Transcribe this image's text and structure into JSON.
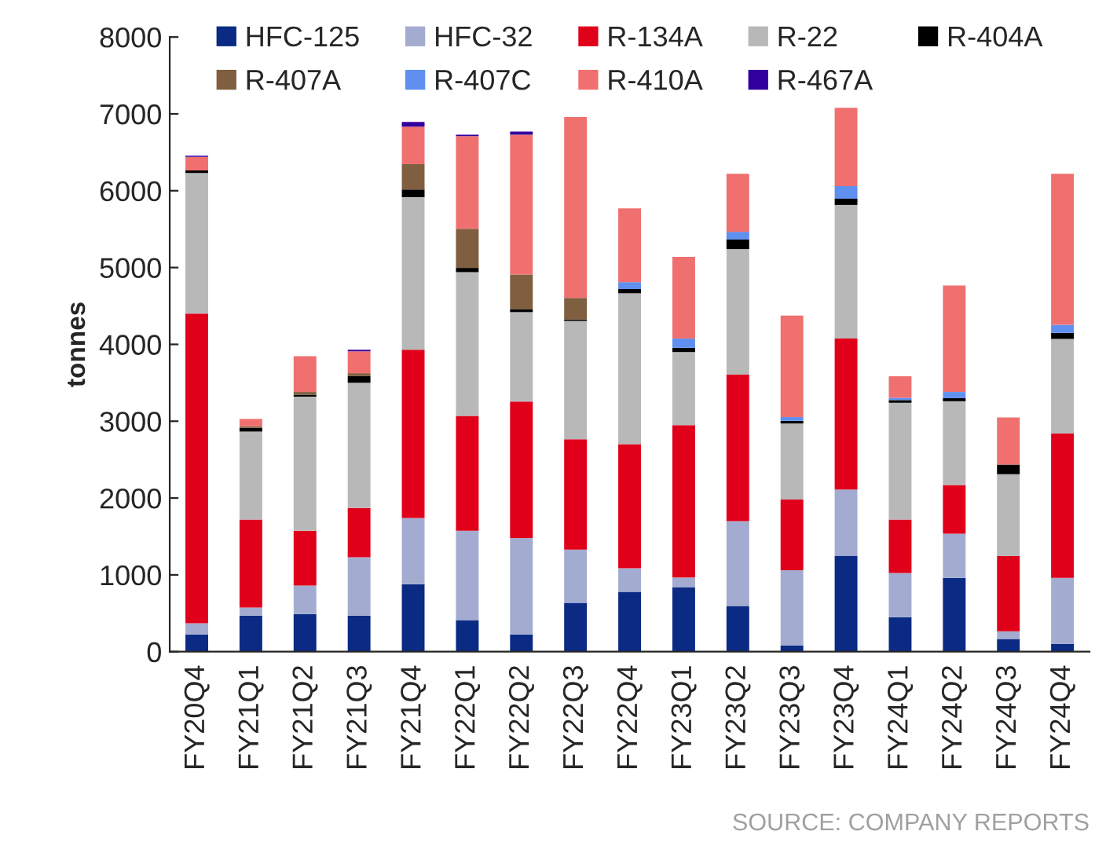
{
  "chart_data": {
    "type": "bar",
    "stacked": true,
    "ylabel": "tonnes",
    "categories": [
      "FY20Q4",
      "FY21Q1",
      "FY21Q2",
      "FY21Q3",
      "FY21Q4",
      "FY22Q1",
      "FY22Q2",
      "FY22Q3",
      "FY22Q4",
      "FY23Q1",
      "FY23Q2",
      "FY23Q3",
      "FY23Q4",
      "FY24Q1",
      "FY24Q2",
      "FY24Q3",
      "FY24Q4"
    ],
    "series": [
      {
        "name": "HFC-125",
        "color": "#0a2a84",
        "values": [
          225,
          470,
          490,
          470,
          880,
          410,
          225,
          635,
          780,
          840,
          595,
          80,
          1250,
          450,
          960,
          165,
          100
        ]
      },
      {
        "name": "HFC-32",
        "color": "#a3acd0",
        "values": [
          145,
          105,
          370,
          760,
          860,
          1165,
          1255,
          695,
          305,
          125,
          1105,
          980,
          860,
          575,
          575,
          100,
          860
        ]
      },
      {
        "name": "R-134A",
        "color": "#e0001a",
        "values": [
          4030,
          1145,
          715,
          640,
          2190,
          1495,
          1775,
          1435,
          1615,
          1985,
          1905,
          920,
          1965,
          695,
          635,
          980,
          1880
        ]
      },
      {
        "name": "R-22",
        "color": "#b8b8b8",
        "values": [
          1830,
          1145,
          1745,
          1630,
          1985,
          1870,
          1165,
          1540,
          1965,
          950,
          1635,
          990,
          1740,
          1520,
          1090,
          1065,
          1230
        ]
      },
      {
        "name": "R-404A",
        "color": "#000000",
        "values": [
          35,
          50,
          25,
          90,
          100,
          55,
          40,
          20,
          55,
          55,
          125,
          35,
          80,
          35,
          40,
          125,
          80
        ]
      },
      {
        "name": "R-407A",
        "color": "#7f5f3f",
        "values": [
          0,
          20,
          35,
          35,
          330,
          510,
          450,
          280,
          0,
          0,
          0,
          0,
          0,
          0,
          0,
          0,
          0
        ]
      },
      {
        "name": "R-407C",
        "color": "#5f8fef",
        "values": [
          0,
          0,
          0,
          0,
          0,
          0,
          0,
          0,
          90,
          120,
          100,
          50,
          165,
          30,
          80,
          0,
          105
        ]
      },
      {
        "name": "R-410A",
        "color": "#f07070",
        "values": [
          175,
          95,
          465,
          285,
          490,
          1205,
          1820,
          2355,
          960,
          1065,
          755,
          1320,
          1020,
          280,
          1385,
          615,
          1965
        ]
      },
      {
        "name": "R-467A",
        "color": "#3300a0",
        "values": [
          15,
          0,
          0,
          20,
          60,
          20,
          40,
          0,
          0,
          0,
          0,
          0,
          0,
          0,
          0,
          0,
          0
        ]
      }
    ],
    "ylim": [
      0,
      8000
    ],
    "yticks": [
      0,
      1000,
      2000,
      3000,
      4000,
      5000,
      6000,
      7000,
      8000
    ],
    "grid": false,
    "legend": "top",
    "annotations": [
      "SOURCE: COMPANY REPORTS"
    ]
  }
}
